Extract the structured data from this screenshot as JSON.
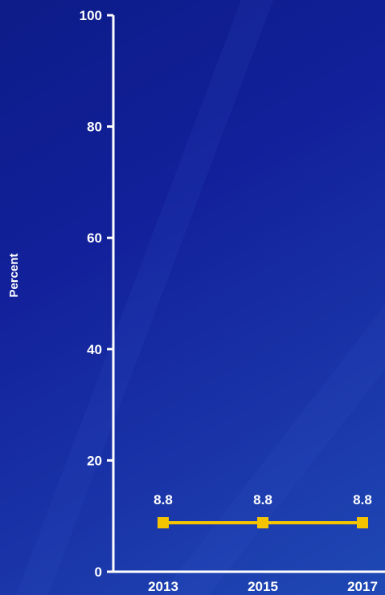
{
  "colors": {
    "series": "#f5c400",
    "axis": "#ffffff",
    "text": "#ffffff"
  },
  "chart_data": {
    "type": "line",
    "x": [
      "2013",
      "2015",
      "2017"
    ],
    "series": [
      {
        "values": [
          8.8,
          8.8,
          8.8
        ],
        "labels": [
          "8.8",
          "8.8",
          "8.8"
        ]
      }
    ],
    "ylabel": "Percent",
    "xlabel": "",
    "ylim": [
      0,
      100
    ],
    "yticks": [
      0,
      20,
      40,
      60,
      80,
      100
    ],
    "grid": false,
    "marker": "square"
  }
}
